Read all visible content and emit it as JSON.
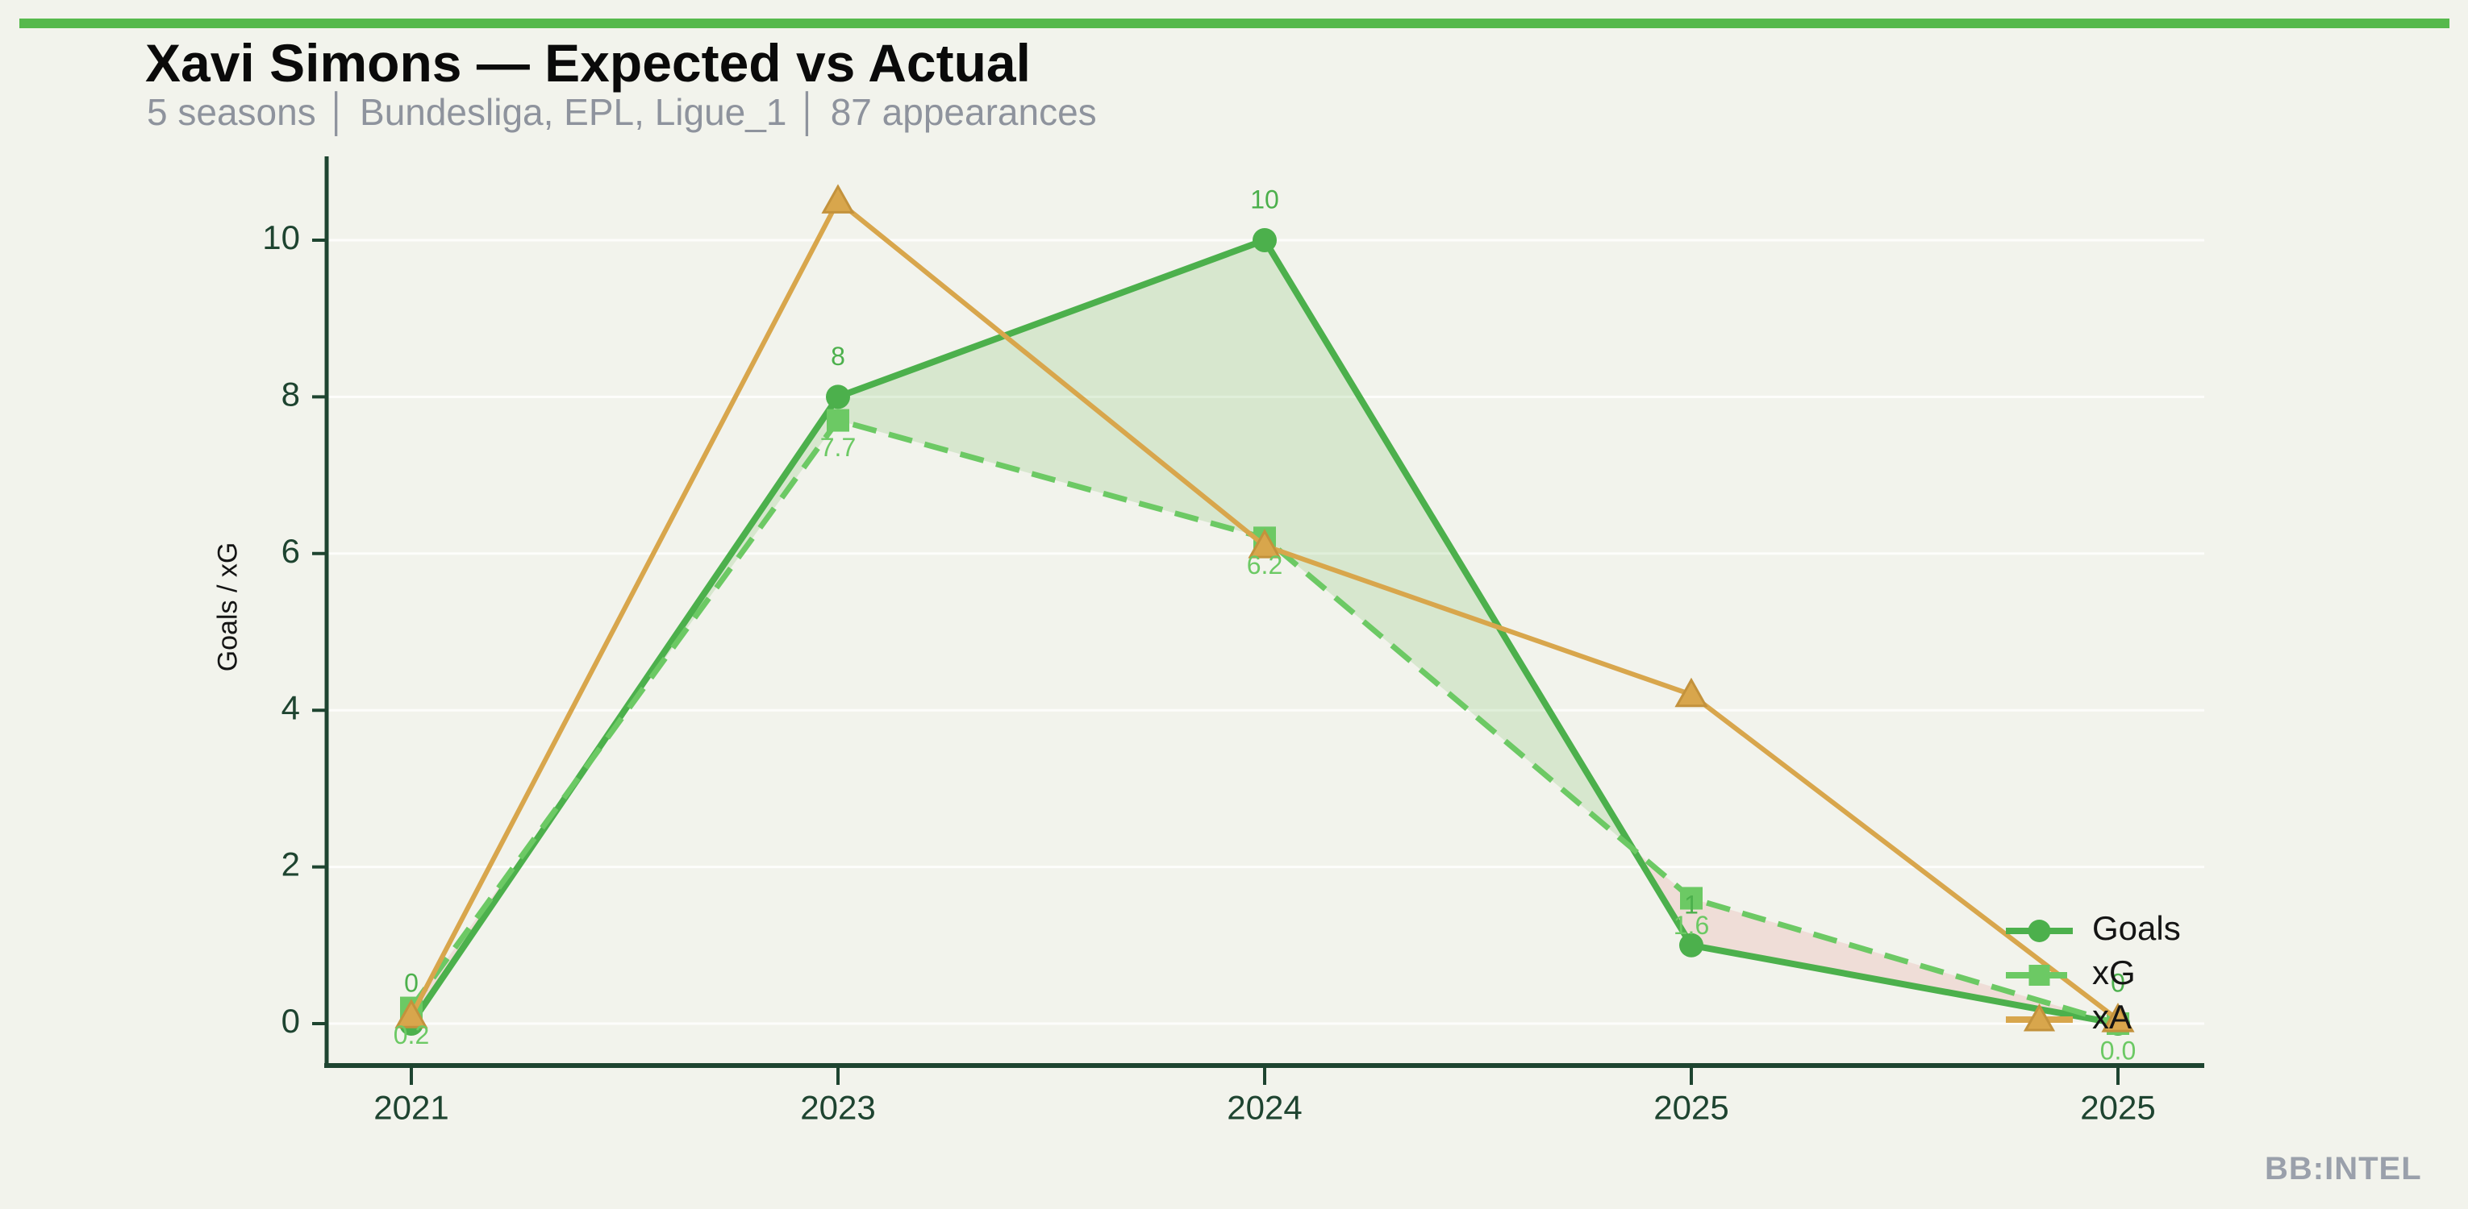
{
  "header": {
    "title": "Xavi Simons — Expected vs Actual",
    "subtitle": "5 seasons │ Bundesliga, EPL, Ligue_1 │ 87 appearances"
  },
  "watermark": {
    "text": "BB:INTEL"
  },
  "accent_bar_color": "#56b94c",
  "chart_data": {
    "type": "line",
    "title": "Xavi Simons — Expected vs Actual",
    "subtitle": "5 seasons | Bundesliga, EPL, Ligue_1 | 87 appearances",
    "categories": [
      "2021",
      "2023",
      "2024",
      "2025",
      "2025"
    ],
    "series": [
      {
        "name": "Goals",
        "values": [
          0,
          8,
          10,
          1,
          0
        ],
        "labels": [
          "0",
          "8",
          "10",
          "1",
          "0"
        ],
        "color": "#4cb04c",
        "marker": "circle",
        "style": "solid"
      },
      {
        "name": "xG",
        "values": [
          0.2,
          7.7,
          6.2,
          1.6,
          0.0
        ],
        "labels": [
          "0.2",
          "7.7",
          "6.2",
          "1.6",
          "0.0"
        ],
        "color": "#6cc964",
        "marker": "square",
        "style": "dashed"
      },
      {
        "name": "xA",
        "values": [
          0.1,
          10.5,
          6.1,
          4.2,
          0.05
        ],
        "labels": null,
        "color": "#d8a64c",
        "marker": "triangle",
        "style": "solid"
      }
    ],
    "xlabel": "",
    "ylabel": "Goals / xG",
    "yticks": [
      0,
      2,
      4,
      6,
      8,
      10
    ],
    "ylim": [
      0,
      10
    ],
    "grid": "horizontal",
    "legend_position": "right",
    "legend": [
      "Goals",
      "xG",
      "xA"
    ],
    "fill_between": {
      "pair": [
        "Goals",
        "xG"
      ],
      "positive_color": "rgba(110,185,90,0.20)",
      "negative_color": "rgba(225,110,110,0.17)"
    },
    "axis_color": "#1e4430",
    "tick_label_color": "#1e4430"
  }
}
